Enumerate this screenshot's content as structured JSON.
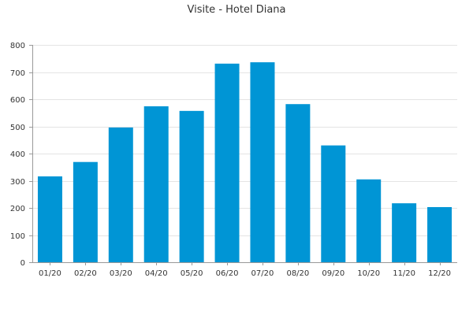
{
  "chart_data": {
    "type": "bar",
    "title": "Visite - Hotel Diana",
    "xlabel": "",
    "ylabel": "",
    "categories": [
      "01/20",
      "02/20",
      "03/20",
      "04/20",
      "05/20",
      "06/20",
      "07/20",
      "08/20",
      "09/20",
      "10/20",
      "11/20",
      "12/20"
    ],
    "values": [
      316,
      369,
      496,
      574,
      557,
      731,
      736,
      582,
      430,
      305,
      217,
      203
    ],
    "ylim": [
      0,
      800
    ],
    "yticks": [
      0,
      100,
      200,
      300,
      400,
      500,
      600,
      700,
      800
    ],
    "grid": true,
    "bar_color": "#0095d5"
  }
}
